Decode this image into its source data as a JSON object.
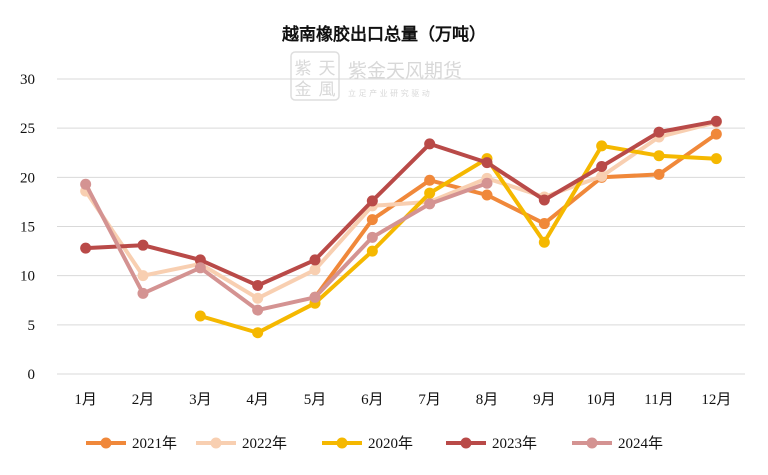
{
  "watermark": {
    "logo_chars": [
      "紫",
      "天",
      "金",
      "風"
    ],
    "name": "紫金天风期货",
    "tagline": "立 足 产 业   研 究 驱 动"
  },
  "chart_data": {
    "type": "line",
    "title": "越南橡胶出口总量（万吨）",
    "xlabel": "",
    "ylabel": "",
    "categories": [
      "1月",
      "2月",
      "3月",
      "4月",
      "5月",
      "6月",
      "7月",
      "8月",
      "9月",
      "10月",
      "11月",
      "12月"
    ],
    "ylim": [
      0,
      30
    ],
    "yticks": [
      0,
      5,
      10,
      15,
      20,
      25,
      30
    ],
    "grid": true,
    "legend_position": "bottom",
    "series": [
      {
        "name": "2021年",
        "color": "#f0883a",
        "values": [
          null,
          null,
          null,
          null,
          7.8,
          15.7,
          19.7,
          18.2,
          15.3,
          20.0,
          20.3,
          24.4
        ]
      },
      {
        "name": "2022年",
        "color": "#f8cfb1",
        "values": [
          18.6,
          10.0,
          11.2,
          7.7,
          10.6,
          17.1,
          17.5,
          19.9,
          18.0,
          20.1,
          24.1,
          25.6
        ]
      },
      {
        "name": "2020年",
        "color": "#f5b800",
        "values": [
          null,
          null,
          5.9,
          4.2,
          7.2,
          12.5,
          18.4,
          21.9,
          13.4,
          23.2,
          22.2,
          21.9
        ]
      },
      {
        "name": "2023年",
        "color": "#b94a48",
        "values": [
          12.8,
          13.1,
          11.6,
          9.0,
          11.6,
          17.6,
          23.4,
          21.5,
          17.7,
          21.1,
          24.6,
          25.7
        ]
      },
      {
        "name": "2024年",
        "color": "#d49392",
        "values": [
          19.3,
          8.2,
          10.8,
          6.5,
          7.8,
          13.9,
          17.3,
          19.4,
          null,
          null,
          null,
          null
        ]
      }
    ]
  }
}
